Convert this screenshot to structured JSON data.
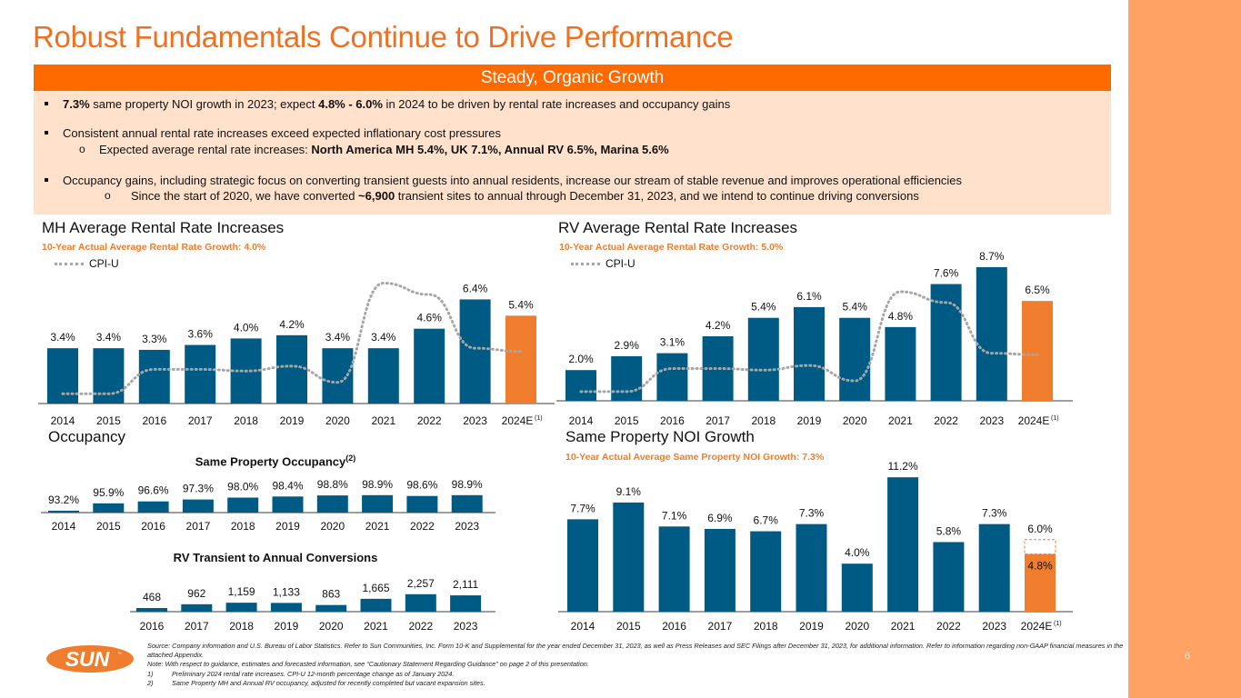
{
  "page": {
    "title": "Robust Fundamentals Continue to Drive Performance",
    "banner": "Steady, Organic Growth",
    "page_number": "6",
    "colors": {
      "title": "#F07021",
      "banner": "#FF6A00",
      "panel": "#FFE1CC",
      "side_bar": "#FFA263",
      "bar": "#005B84",
      "estimate_bar": "#F07D2D",
      "cpi_line": "#A6A6A6",
      "accent_text": "#F07D2D"
    }
  },
  "bullets": [
    {
      "parts": [
        {
          "b": "7.3%"
        },
        {
          "t": " same property NOI growth in 2023; expect "
        },
        {
          "b": "4.8% - 6.0%"
        },
        {
          "t": " in 2024 to be driven by rental rate increases and occupancy gains"
        }
      ]
    },
    {
      "parts": [
        {
          "t": "Consistent annual rental rate increases exceed expected inflationary cost pressures"
        }
      ],
      "sub": {
        "marker": "o",
        "parts": [
          {
            "t": "Expected average rental rate increases:  "
          },
          {
            "b": "North America MH 5.4%, UK 7.1%, Annual RV 6.5%, Marina 5.6%"
          }
        ]
      }
    },
    {
      "parts": [
        {
          "t": "Occupancy gains, including strategic focus on converting transient guests into annual residents, increase our stream of stable revenue and improves operational efficiencies"
        }
      ],
      "sub": {
        "marker": "o",
        "parts": [
          {
            "t": "Since the start of 2020, we have converted "
          },
          {
            "b": "~6,900"
          },
          {
            "t": " transient sites to annual through December 31, 2023, and we intend to continue driving conversions"
          }
        ]
      }
    }
  ],
  "sections": {
    "mh": {
      "title": "MH Average Rental Rate Increases",
      "subtitle": "10-Year Actual Average Rental Rate Growth: 4.0%",
      "legend": "CPI-U"
    },
    "rv": {
      "title": "RV Average Rental Rate Increases",
      "subtitle": "10-Year Actual Average Rental Rate Growth: 5.0%",
      "legend": "CPI-U"
    },
    "occupancy": {
      "title": "Occupancy",
      "occ_chart_title": "Same Property Occupancy",
      "occ_chart_sup": "(2)",
      "conv_chart_title": "RV Transient to Annual Conversions"
    },
    "noi": {
      "title": "Same Property NOI Growth",
      "subtitle": "10-Year Actual Average Same Property NOI Growth: 7.3%"
    }
  },
  "chart_data": [
    {
      "id": "mh",
      "type": "bar",
      "title": "MH Average Rental Rate Increases",
      "categories": [
        "2014",
        "2015",
        "2016",
        "2017",
        "2018",
        "2019",
        "2020",
        "2021",
        "2022",
        "2023",
        "2024E"
      ],
      "category_superscript": {
        "2024E": "(1)"
      },
      "values": [
        3.4,
        3.4,
        3.3,
        3.6,
        4.0,
        4.2,
        3.4,
        3.4,
        4.6,
        6.4,
        5.4
      ],
      "labels": [
        "3.4%",
        "3.4%",
        "3.3%",
        "3.6%",
        "4.0%",
        "4.2%",
        "3.4%",
        "3.4%",
        "4.6%",
        "6.4%",
        "5.4%"
      ],
      "estimate_index": 10,
      "series": [
        {
          "name": "CPI-U",
          "type": "line-dotted",
          "values": [
            0.6,
            0.6,
            2.1,
            2.1,
            2.0,
            2.3,
            1.3,
            7.4,
            6.7,
            3.4,
            3.2
          ]
        }
      ],
      "ylim": [
        0,
        8
      ],
      "grid": false,
      "legend": "top-left"
    },
    {
      "id": "rv",
      "type": "bar",
      "title": "RV Average Rental Rate Increases",
      "categories": [
        "2014",
        "2015",
        "2016",
        "2017",
        "2018",
        "2019",
        "2020",
        "2021",
        "2022",
        "2023",
        "2024E"
      ],
      "category_superscript": {
        "2024E": "(1)"
      },
      "values": [
        2.0,
        2.9,
        3.1,
        4.2,
        5.4,
        6.1,
        5.4,
        4.8,
        7.6,
        8.7,
        6.5
      ],
      "labels": [
        "2.0%",
        "2.9%",
        "3.1%",
        "4.2%",
        "5.4%",
        "6.1%",
        "5.4%",
        "4.8%",
        "7.6%",
        "8.7%",
        "6.5%"
      ],
      "estimate_index": 10,
      "series": [
        {
          "name": "CPI-U",
          "type": "line-dotted",
          "values": [
            0.6,
            0.6,
            2.1,
            2.1,
            2.0,
            2.3,
            1.3,
            7.1,
            6.4,
            3.1,
            3.0
          ]
        }
      ],
      "ylim": [
        0,
        9.5
      ],
      "grid": false,
      "legend": "top-left"
    },
    {
      "id": "occupancy",
      "type": "bar",
      "title": "Same Property Occupancy(2)",
      "categories": [
        "2014",
        "2015",
        "2016",
        "2017",
        "2018",
        "2019",
        "2020",
        "2021",
        "2022",
        "2023"
      ],
      "values": [
        93.2,
        95.9,
        96.6,
        97.3,
        98.0,
        98.4,
        98.8,
        98.9,
        98.6,
        98.9
      ],
      "labels": [
        "93.2%",
        "95.9%",
        "96.6%",
        "97.3%",
        "98.0%",
        "98.4%",
        "98.8%",
        "98.9%",
        "98.6%",
        "98.9%"
      ],
      "ylim": [
        92.5,
        99.5
      ],
      "grid": false
    },
    {
      "id": "conversions",
      "type": "bar",
      "title": "RV Transient to Annual Conversions",
      "categories": [
        "2016",
        "2017",
        "2018",
        "2019",
        "2020",
        "2021",
        "2022",
        "2023"
      ],
      "values": [
        468,
        962,
        1159,
        1133,
        863,
        1665,
        2257,
        2111
      ],
      "labels": [
        "468",
        "962",
        "1,159",
        "1,133",
        "863",
        "1,665",
        "2,257",
        "2,111"
      ],
      "ylim": [
        0,
        2500
      ],
      "grid": false
    },
    {
      "id": "noi",
      "type": "bar",
      "title": "Same Property NOI Growth",
      "categories": [
        "2014",
        "2015",
        "2016",
        "2017",
        "2018",
        "2019",
        "2020",
        "2021",
        "2022",
        "2023",
        "2024E"
      ],
      "category_superscript": {
        "2024E": "(1)"
      },
      "values": [
        7.7,
        9.1,
        7.1,
        6.9,
        6.7,
        7.3,
        4.0,
        11.2,
        5.8,
        7.3,
        4.8
      ],
      "labels": [
        "7.7%",
        "9.1%",
        "7.1%",
        "6.9%",
        "6.7%",
        "7.3%",
        "4.0%",
        "11.2%",
        "5.8%",
        "7.3%",
        "4.8%"
      ],
      "estimate_index": 10,
      "estimate_range": {
        "low": 4.8,
        "high": 6.0,
        "high_label": "6.0%"
      },
      "ylim": [
        0,
        11.2
      ],
      "grid": false
    }
  ],
  "footnotes": {
    "source": "Source: Company information and U.S. Bureau of Labor Statistics. Refer to Sun Communities, Inc. Form 10-K and Supplemental for the year ended December 31, 2023, as well as Press Releases and SEC Filings after December 31, 2023, for additional information. Refer to information regarding non-GAAP financial measures in the attached Appendix.",
    "note": "Note: With respect to guidance, estimates and forecasted information, see “Cautionary Statement Regarding Guidance” on page 2 of this presentation.",
    "items": [
      {
        "n": "1)",
        "t": "Preliminary 2024 rental rate increases. CPI-U 12-month percentage change as of January 2024."
      },
      {
        "n": "2)",
        "t": "Same Property MH and Annual RV occupancy, adjusted for recently completed but vacant expansion sites."
      }
    ]
  },
  "logo": {
    "text": "SUN",
    "tm": "™"
  }
}
